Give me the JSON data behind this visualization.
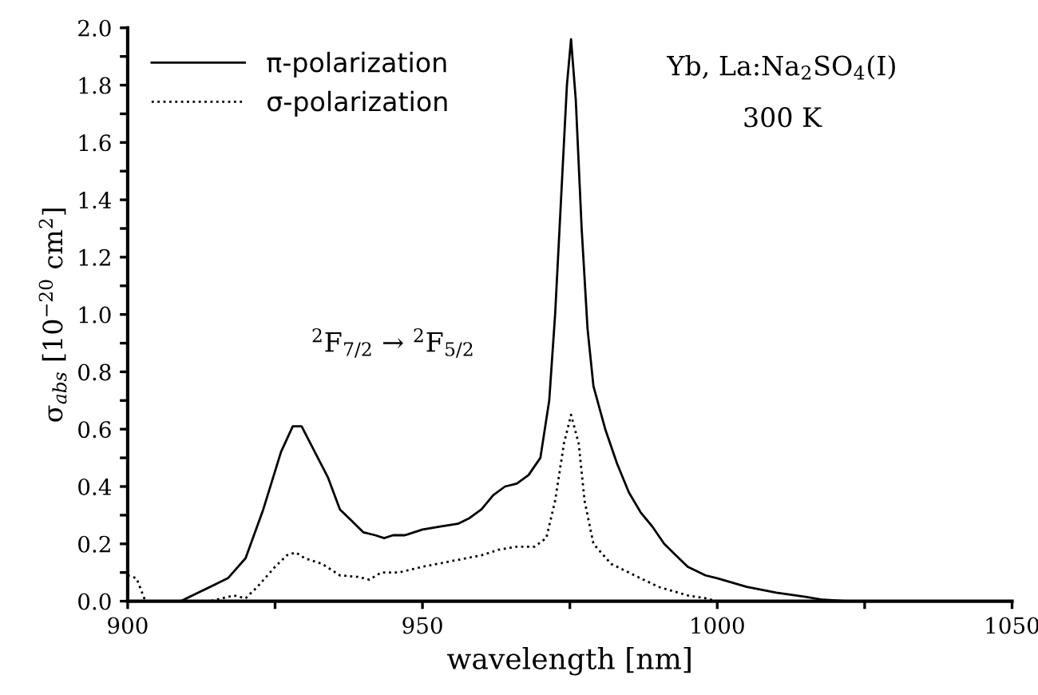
{
  "chart_data": {
    "type": "line",
    "xlabel": "wavelength [nm]",
    "ylabel": "σ$_{abs}$ [10$^{−20}$ cm$^{2}$]",
    "annotations": [
      "Yb, La:Na$_{2}$SO$_{4}$(I)",
      "300 K",
      "$^{2}$F$_{7/2}$ → $^{2}$F$_{5/2}$"
    ],
    "xlim": [
      900,
      1050
    ],
    "ylim": [
      0,
      2.0
    ],
    "xticks": [
      900,
      {
        "value": 925,
        "label": null
      },
      950,
      {
        "value": 975,
        "label": null
      },
      1000,
      {
        "value": 1025,
        "label": null
      },
      1050
    ],
    "yticks": [
      {
        "value": 0,
        "label": "0.0"
      },
      {
        "value": 0.1,
        "label": null
      },
      0.2,
      {
        "value": 0.3,
        "label": null
      },
      0.4,
      {
        "value": 0.5,
        "label": null
      },
      0.6,
      {
        "value": 0.7,
        "label": null
      },
      0.8,
      {
        "value": 0.9,
        "label": null
      },
      {
        "value": 1.0,
        "label": "1.0"
      },
      {
        "value": 1.1,
        "label": null
      },
      1.2,
      {
        "value": 1.3,
        "label": null
      },
      1.4,
      {
        "value": 1.5,
        "label": null
      },
      1.6,
      {
        "value": 1.7,
        "label": null
      },
      1.8,
      {
        "value": 1.9,
        "label": null
      },
      {
        "value": 2.0,
        "label": "2.0"
      }
    ],
    "grid": false,
    "legend": "top left",
    "marker": "none",
    "series": [
      {
        "name": "π-polarization",
        "color": "#000000",
        "line_style": "solid",
        "x": [
          909,
          912,
          915,
          917,
          920,
          923,
          926,
          928,
          929.5,
          931,
          934,
          936,
          938,
          940,
          942,
          943.5,
          945,
          947,
          950,
          953,
          956,
          958,
          960,
          962,
          964,
          966,
          968,
          970,
          971.5,
          972.5,
          973.5,
          974.5,
          975.2,
          976,
          977,
          978,
          979,
          981,
          983,
          985,
          987,
          989,
          991,
          993,
          995,
          998,
          1000,
          1005,
          1010,
          1015,
          1018,
          1022
        ],
        "values": [
          0,
          0.03,
          0.06,
          0.08,
          0.15,
          0.32,
          0.52,
          0.61,
          0.61,
          0.55,
          0.43,
          0.32,
          0.28,
          0.24,
          0.23,
          0.22,
          0.23,
          0.23,
          0.25,
          0.26,
          0.27,
          0.29,
          0.32,
          0.37,
          0.4,
          0.41,
          0.44,
          0.5,
          0.7,
          1.0,
          1.4,
          1.8,
          1.96,
          1.75,
          1.3,
          0.95,
          0.75,
          0.6,
          0.48,
          0.38,
          0.31,
          0.26,
          0.2,
          0.16,
          0.12,
          0.09,
          0.08,
          0.05,
          0.03,
          0.015,
          0.005,
          0
        ]
      },
      {
        "name": "σ-polarization",
        "color": "#000000",
        "line_style": "dotted",
        "x": [
          900,
          901.5,
          903,
          914,
          918,
          920,
          922,
          925,
          927,
          928.5,
          930,
          933,
          936,
          939,
          941,
          943,
          946,
          950,
          955,
          960,
          963,
          966,
          969,
          971,
          972.5,
          974,
          975.2,
          976.5,
          977.5,
          979,
          982,
          986,
          990,
          995,
          998,
          1000
        ],
        "values": [
          0.09,
          0.08,
          0,
          0,
          0.02,
          0.01,
          0.05,
          0.12,
          0.16,
          0.17,
          0.15,
          0.13,
          0.09,
          0.085,
          0.075,
          0.1,
          0.1,
          0.12,
          0.14,
          0.16,
          0.18,
          0.19,
          0.19,
          0.22,
          0.35,
          0.55,
          0.65,
          0.55,
          0.35,
          0.2,
          0.13,
          0.09,
          0.05,
          0.02,
          0.01,
          0
        ]
      }
    ]
  }
}
